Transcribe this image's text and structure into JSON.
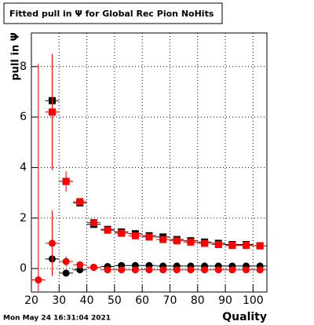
{
  "chart_data": {
    "type": "scatter",
    "title": "Fitted pull in  Ψ  for Global Rec Pion NoHits",
    "y_label": "pull in  Ψ",
    "x_label": "Quality",
    "timestamp": "Mon May 24 16:31:04 2021",
    "x": [
      22.5,
      27.5,
      32.5,
      37.5,
      42.5,
      47.5,
      52.5,
      57.5,
      62.5,
      67.5,
      72.5,
      77.5,
      82.5,
      87.5,
      92.5,
      97.5,
      102.5
    ],
    "series": [
      {
        "color": "#000000",
        "marker": "square",
        "values": [
          null,
          6.65,
          3.45,
          2.6,
          1.75,
          1.55,
          1.45,
          1.38,
          1.3,
          1.25,
          1.15,
          1.1,
          1.05,
          1.0,
          0.95,
          0.95,
          0.9
        ],
        "errors": [
          null,
          0.15,
          0.15,
          0.1,
          0.08,
          0.05,
          0.05,
          0.05,
          0.05,
          0.05,
          0.05,
          0.05,
          0.05,
          0.05,
          0.05,
          0.05,
          0.05
        ]
      },
      {
        "color": "#ff0000",
        "marker": "square",
        "values": [
          null,
          6.2,
          3.45,
          2.65,
          1.82,
          1.52,
          1.4,
          1.3,
          1.25,
          1.15,
          1.1,
          1.05,
          1.0,
          0.95,
          0.92,
          0.92,
          0.9
        ],
        "errors": [
          null,
          2.3,
          0.4,
          0.12,
          0.08,
          0.05,
          0.05,
          0.05,
          0.05,
          0.05,
          0.05,
          0.05,
          0.05,
          0.05,
          0.05,
          0.05,
          0.05
        ]
      },
      {
        "color": "#000000",
        "marker": "circle",
        "values": [
          null,
          0.38,
          -0.18,
          -0.05,
          0.05,
          0.08,
          0.12,
          0.12,
          0.12,
          0.1,
          0.1,
          0.1,
          0.1,
          0.1,
          0.1,
          0.1,
          0.1
        ],
        "errors": [
          null,
          0.1,
          0.08,
          0.05,
          0.05,
          0.05,
          0.05,
          0.05,
          0.05,
          0.05,
          0.05,
          0.05,
          0.05,
          0.05,
          0.05,
          0.05,
          0.05
        ]
      },
      {
        "color": "#ff0000",
        "marker": "circle",
        "values": [
          -0.45,
          1.0,
          0.28,
          0.15,
          0.05,
          -0.05,
          -0.05,
          -0.05,
          -0.05,
          -0.05,
          -0.05,
          -0.05,
          -0.05,
          -0.05,
          -0.05,
          -0.05,
          -0.05
        ],
        "errors": [
          8.55,
          1.3,
          0.2,
          0.08,
          0.05,
          0.05,
          0.05,
          0.05,
          0.05,
          0.05,
          0.05,
          0.05,
          0.05,
          0.05,
          0.05,
          0.05,
          0.05
        ]
      }
    ],
    "xlim": [
      20,
      105
    ],
    "ylim": [
      -0.93,
      9.33
    ],
    "xticks": [
      20,
      30,
      40,
      50,
      60,
      70,
      80,
      90,
      100
    ],
    "yticks": [
      0,
      2,
      4,
      6,
      8
    ],
    "grid": true
  }
}
